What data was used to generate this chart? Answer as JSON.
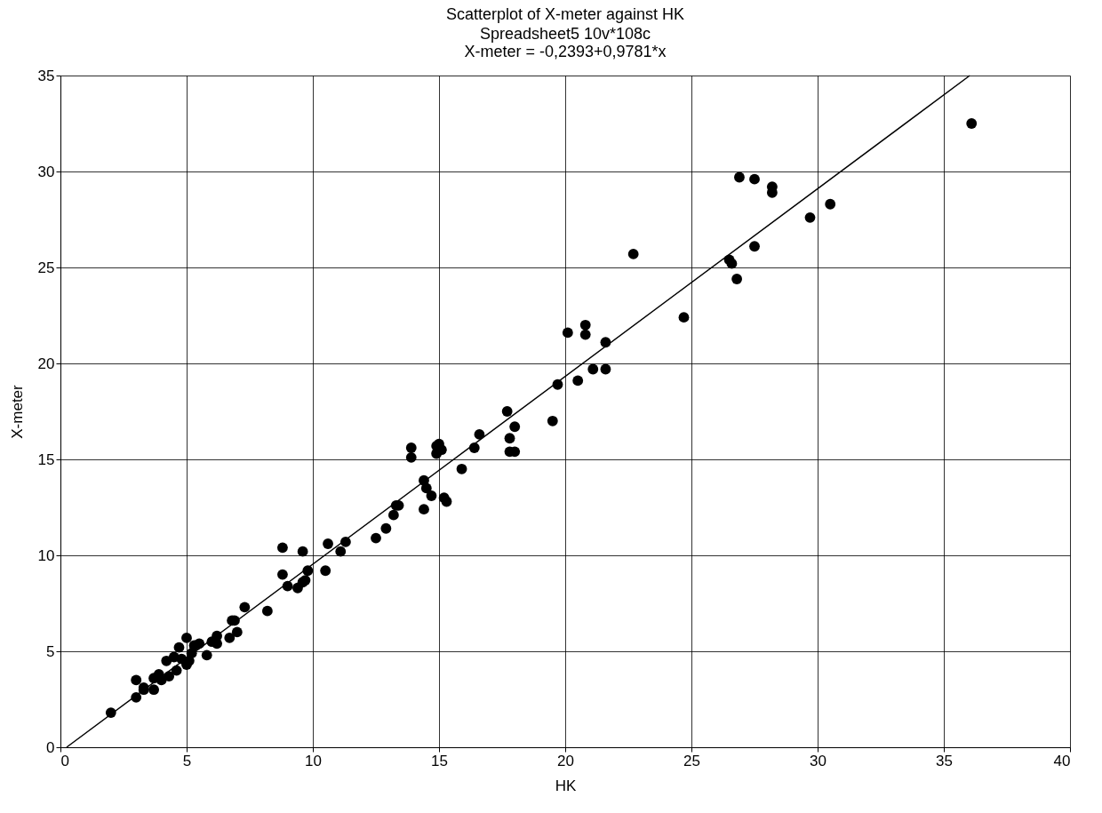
{
  "chart_data": {
    "type": "scatter",
    "title": "Scatterplot of X-meter against HK",
    "subtitle": "Spreadsheet5 10v*108c\nX-meter = -0,2393+0,9781*x",
    "xlabel": "HK",
    "ylabel": "X-meter",
    "xlim": [
      0,
      40
    ],
    "ylim": [
      0,
      35
    ],
    "xticks": [
      0,
      5,
      10,
      15,
      20,
      25,
      30,
      35,
      40
    ],
    "yticks": [
      0,
      5,
      10,
      15,
      20,
      25,
      30,
      35
    ],
    "grid": true,
    "series": [
      {
        "color": "#000000",
        "marker": "circle",
        "x": [
          2.0,
          3.0,
          3.0,
          3.3,
          3.3,
          3.7,
          3.7,
          3.9,
          4.0,
          4.2,
          4.3,
          4.5,
          4.6,
          4.7,
          4.8,
          5.0,
          5.0,
          5.1,
          5.2,
          5.3,
          5.5,
          5.8,
          6.0,
          6.2,
          6.2,
          6.7,
          6.8,
          6.9,
          7.0,
          7.3,
          8.2,
          8.8,
          8.8,
          9.0,
          9.4,
          9.6,
          9.6,
          9.7,
          9.8,
          10.5,
          10.6,
          11.1,
          11.3,
          12.5,
          12.9,
          13.2,
          13.3,
          13.4,
          13.9,
          13.9,
          14.4,
          14.4,
          14.5,
          14.7,
          14.9,
          14.9,
          15.0,
          15.1,
          15.2,
          15.3,
          15.9,
          16.4,
          16.6,
          17.7,
          17.8,
          17.8,
          18.0,
          18.0,
          19.5,
          19.7,
          20.1,
          20.5,
          20.8,
          20.8,
          21.1,
          21.6,
          21.6,
          22.7,
          24.7,
          26.5,
          26.6,
          26.8,
          26.9,
          27.5,
          27.5,
          28.2,
          28.2,
          29.7,
          30.5,
          36.1
        ],
        "values": [
          1.8,
          2.6,
          3.5,
          3.1,
          3.0,
          3.0,
          3.6,
          3.8,
          3.5,
          4.5,
          3.7,
          4.7,
          4.0,
          5.2,
          4.6,
          4.3,
          5.7,
          4.5,
          4.9,
          5.3,
          5.4,
          4.8,
          5.5,
          5.4,
          5.8,
          5.7,
          6.6,
          6.6,
          6.0,
          7.3,
          7.1,
          10.4,
          9.0,
          8.4,
          8.3,
          10.2,
          8.6,
          8.7,
          9.2,
          9.2,
          10.6,
          10.2,
          10.7,
          10.9,
          11.4,
          12.1,
          12.6,
          12.6,
          15.1,
          15.6,
          13.9,
          12.4,
          13.5,
          13.1,
          15.3,
          15.7,
          15.8,
          15.5,
          13.0,
          12.8,
          14.5,
          15.6,
          16.3,
          17.5,
          16.1,
          15.4,
          16.7,
          15.4,
          17.0,
          18.9,
          21.6,
          19.1,
          22.0,
          21.5,
          19.7,
          19.7,
          21.1,
          25.7,
          22.4,
          25.4,
          25.2,
          24.4,
          29.7,
          29.6,
          26.1,
          29.2,
          28.9,
          27.6,
          28.3,
          32.5
        ]
      },
      {
        "type": "line",
        "color": "#000000",
        "line_style": "solid",
        "marker": "none",
        "x": [
          0.245,
          36.03
        ],
        "values": [
          0.0,
          35.0
        ]
      }
    ]
  }
}
